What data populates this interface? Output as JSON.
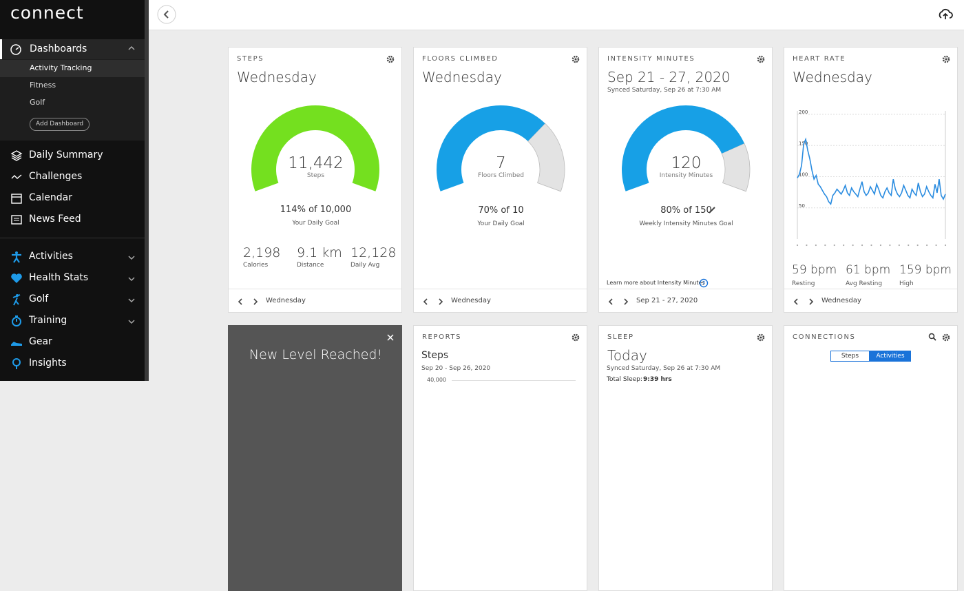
{
  "sidebar": {
    "logo": "connect",
    "dashboards": {
      "label": "Dashboards",
      "items": [
        "Activity Tracking",
        "Fitness",
        "Golf"
      ],
      "add": "Add Dashboard"
    },
    "nav1": [
      "Daily Summary",
      "Challenges",
      "Calendar",
      "News Feed"
    ],
    "nav2": [
      "Activities",
      "Health Stats",
      "Golf",
      "Training",
      "Gear",
      "Insights"
    ]
  },
  "cards": {
    "steps": {
      "label": "STEPS",
      "title": "Wednesday",
      "value": "11,442",
      "unit": "Steps",
      "gauge_percent": 100,
      "goal": "114% of 10,000",
      "goal_label": "Your Daily Goal",
      "stats": [
        {
          "value": "2,198",
          "label": "Calories"
        },
        {
          "value": "9.1 km",
          "label": "Distance"
        },
        {
          "value": "12,128",
          "label": "Daily Avg"
        }
      ],
      "footer": "Wednesday"
    },
    "floors": {
      "label": "FLOORS CLIMBED",
      "title": "Wednesday",
      "value": "7",
      "unit": "Floors Climbed",
      "gauge_percent": 70,
      "goal": "70% of 10",
      "goal_label": "Your Daily Goal",
      "footer": "Wednesday"
    },
    "intensity": {
      "label": "INTENSITY MINUTES",
      "title": "Sep 21 - 27, 2020",
      "synced": "Synced Saturday, Sep 26 at 7:30 AM",
      "value": "120",
      "unit": "Intensity Minutes",
      "gauge_percent": 80,
      "goal": "80% of 150",
      "goal_label": "Weekly Intensity Minutes Goal",
      "learn_more": "Learn more about Intensity Minutes",
      "footer": "Sep 21 - 27, 2020"
    },
    "heart": {
      "label": "HEART RATE",
      "title": "Wednesday",
      "chart": {
        "type": "line",
        "color": "#2a8ce0",
        "ylim": [
          0,
          200
        ],
        "yticks": [
          200,
          150,
          100,
          50
        ],
        "values": [
          98,
          104,
          118,
          152,
          160,
          142,
          128,
          110,
          96,
          102,
          88,
          84,
          78,
          72,
          68,
          60,
          56,
          70,
          74,
          80,
          76,
          72,
          78,
          86,
          74,
          70,
          82,
          76,
          72,
          68,
          80,
          92,
          76,
          70,
          74,
          84,
          78,
          72,
          88,
          80,
          70,
          66,
          76,
          82,
          74,
          70,
          96,
          80,
          72,
          68,
          74,
          86,
          78,
          70,
          66,
          80,
          74,
          70,
          90,
          76,
          68,
          72,
          84,
          76,
          70,
          66,
          88,
          74,
          96,
          70,
          64,
          72
        ]
      },
      "stats": [
        {
          "value": "59 bpm",
          "label": "Resting"
        },
        {
          "value": "61 bpm",
          "label": "Avg Resting"
        },
        {
          "value": "159 bpm",
          "label": "High"
        }
      ],
      "footer": "Wednesday"
    },
    "level": {
      "title": "New Level Reached!"
    },
    "reports": {
      "label": "REPORTS",
      "title": "Steps",
      "range": "Sep 20 - Sep 26, 2020",
      "tick": "40,000"
    },
    "sleep": {
      "label": "SLEEP",
      "title": "Today",
      "synced": "Synced Saturday, Sep 26 at 7:30 AM",
      "total_label": "Total Sleep:",
      "total": "9:39 hrs"
    },
    "connections": {
      "label": "CONNECTIONS",
      "tabs": [
        "Steps",
        "Activities"
      ]
    }
  }
}
